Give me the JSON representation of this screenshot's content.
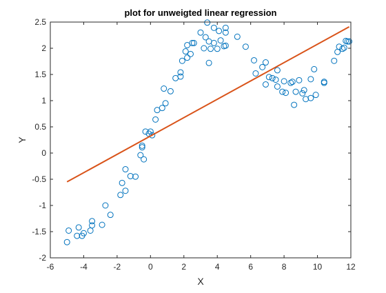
{
  "chart_data": {
    "type": "scatter",
    "title": "plot for unweigted linear regression",
    "xlabel": "X",
    "ylabel": "Y",
    "xlim": [
      -6,
      12
    ],
    "ylim": [
      -2,
      2.5
    ],
    "xticks": [
      "-6",
      "-4",
      "-2",
      "0",
      "2",
      "4",
      "6",
      "8",
      "10",
      "12"
    ],
    "yticks": [
      "-2",
      "-1.5",
      "-1",
      "-0.5",
      "0",
      "0.5",
      "1",
      "1.5",
      "2",
      "2.5"
    ],
    "grid": false,
    "legend": "none",
    "series": [
      {
        "type": "scatter",
        "marker": "circle-open",
        "color": "#0072BD",
        "points": [
          [
            -5.0,
            -1.7
          ],
          [
            -4.9,
            -1.48
          ],
          [
            -4.4,
            -1.58
          ],
          [
            -4.3,
            -1.42
          ],
          [
            -4.1,
            -1.58
          ],
          [
            -4.0,
            -1.53
          ],
          [
            -3.6,
            -1.48
          ],
          [
            -3.5,
            -1.38
          ],
          [
            -3.5,
            -1.3
          ],
          [
            -2.9,
            -1.37
          ],
          [
            -2.7,
            -1.0
          ],
          [
            -2.4,
            -1.18
          ],
          [
            -1.8,
            -0.8
          ],
          [
            -1.7,
            -0.57
          ],
          [
            -1.5,
            -0.72
          ],
          [
            -1.5,
            -0.31
          ],
          [
            -1.2,
            -0.44
          ],
          [
            -0.9,
            -0.45
          ],
          [
            -0.6,
            -0.04
          ],
          [
            -0.5,
            0.11
          ],
          [
            -0.5,
            0.14
          ],
          [
            -0.4,
            -0.12
          ],
          [
            -0.3,
            0.41
          ],
          [
            -0.1,
            0.37
          ],
          [
            0.0,
            0.41
          ],
          [
            0.1,
            0.34
          ],
          [
            0.3,
            0.64
          ],
          [
            0.4,
            0.82
          ],
          [
            0.7,
            0.86
          ],
          [
            0.8,
            1.23
          ],
          [
            0.9,
            0.95
          ],
          [
            1.2,
            1.18
          ],
          [
            1.5,
            1.43
          ],
          [
            1.8,
            1.46
          ],
          [
            1.8,
            1.54
          ],
          [
            1.9,
            1.76
          ],
          [
            2.1,
            1.94
          ],
          [
            2.2,
            1.82
          ],
          [
            2.2,
            2.06
          ],
          [
            2.4,
            1.89
          ],
          [
            2.5,
            2.1
          ],
          [
            2.6,
            2.1
          ],
          [
            3.0,
            2.3
          ],
          [
            3.2,
            2.0
          ],
          [
            3.3,
            2.21
          ],
          [
            3.4,
            2.49
          ],
          [
            3.5,
            1.72
          ],
          [
            3.5,
            2.13
          ],
          [
            3.6,
            1.99
          ],
          [
            3.8,
            2.39
          ],
          [
            3.8,
            2.1
          ],
          [
            4.0,
            1.99
          ],
          [
            4.1,
            2.33
          ],
          [
            4.2,
            2.15
          ],
          [
            4.4,
            2.04
          ],
          [
            4.5,
            2.05
          ],
          [
            4.5,
            2.39
          ],
          [
            4.5,
            2.3
          ],
          [
            5.2,
            2.22
          ],
          [
            5.7,
            2.03
          ],
          [
            6.2,
            1.77
          ],
          [
            6.3,
            1.52
          ],
          [
            6.7,
            1.64
          ],
          [
            6.9,
            1.73
          ],
          [
            6.9,
            1.31
          ],
          [
            7.1,
            1.45
          ],
          [
            7.3,
            1.43
          ],
          [
            7.5,
            1.4
          ],
          [
            7.6,
            1.58
          ],
          [
            7.6,
            1.27
          ],
          [
            7.9,
            1.17
          ],
          [
            8.0,
            1.37
          ],
          [
            8.1,
            1.15
          ],
          [
            8.4,
            1.34
          ],
          [
            8.5,
            1.36
          ],
          [
            8.6,
            0.92
          ],
          [
            8.7,
            1.17
          ],
          [
            8.9,
            1.39
          ],
          [
            9.1,
            1.14
          ],
          [
            9.2,
            1.2
          ],
          [
            9.3,
            1.03
          ],
          [
            9.6,
            1.05
          ],
          [
            9.6,
            1.41
          ],
          [
            9.8,
            1.6
          ],
          [
            9.9,
            1.11
          ],
          [
            10.4,
            1.36
          ],
          [
            10.4,
            1.34
          ],
          [
            11.0,
            1.76
          ],
          [
            11.2,
            1.93
          ],
          [
            11.3,
            2.03
          ],
          [
            11.5,
            1.99
          ],
          [
            11.6,
            2.01
          ],
          [
            11.7,
            2.14
          ],
          [
            11.8,
            2.13
          ],
          [
            11.9,
            2.13
          ]
        ]
      },
      {
        "type": "line",
        "color": "#D95319",
        "x": [
          -5.0,
          11.9
        ],
        "y": [
          -0.55,
          2.41
        ]
      }
    ]
  }
}
